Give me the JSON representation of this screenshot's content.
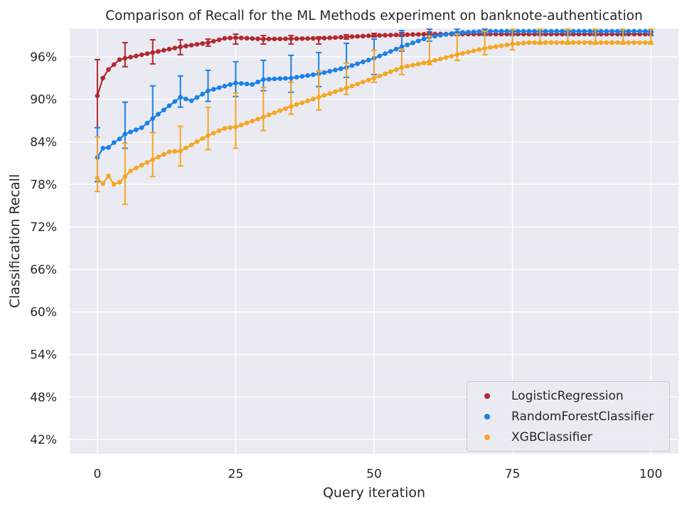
{
  "chart_data": {
    "type": "line",
    "title": "Comparison of Recall for the ML Methods experiment on banknote-authentication",
    "xlabel": "Query iteration",
    "ylabel": "Classification Recall",
    "xlim": [
      -5,
      105
    ],
    "ylim": [
      0.4,
      1.0
    ],
    "x_ticks": [
      0,
      25,
      50,
      75,
      100
    ],
    "y_ticks": [
      0.42,
      0.48,
      0.54,
      0.6,
      0.66,
      0.72,
      0.78,
      0.84,
      0.9,
      0.96
    ],
    "y_tick_labels": [
      "42%",
      "48%",
      "54%",
      "60%",
      "66%",
      "72%",
      "78%",
      "84%",
      "90%",
      "96%"
    ],
    "grid": true,
    "legend_position": "lower right",
    "series": [
      {
        "name": "LogisticRegression",
        "color": "#b2292e",
        "anchors": [
          [
            0,
            0.905
          ],
          [
            1,
            0.93
          ],
          [
            2,
            0.942
          ],
          [
            3,
            0.949
          ],
          [
            4,
            0.956
          ],
          [
            5,
            0.958
          ],
          [
            10,
            0.966
          ],
          [
            15,
            0.974
          ],
          [
            20,
            0.98
          ],
          [
            23,
            0.986
          ],
          [
            25,
            0.987
          ],
          [
            30,
            0.985
          ],
          [
            40,
            0.986
          ],
          [
            45,
            0.988
          ],
          [
            50,
            0.99
          ],
          [
            55,
            0.991
          ],
          [
            60,
            0.992
          ],
          [
            100,
            0.992
          ]
        ],
        "error_bars": [
          [
            0,
            0.86,
            0.956
          ],
          [
            5,
            0.946,
            0.98
          ],
          [
            10,
            0.95,
            0.984
          ],
          [
            15,
            0.963,
            0.984
          ],
          [
            20,
            0.975,
            0.985
          ],
          [
            25,
            0.978,
            0.992
          ],
          [
            30,
            0.978,
            0.99
          ],
          [
            35,
            0.978,
            0.99
          ],
          [
            40,
            0.978,
            0.988
          ],
          [
            45,
            0.985,
            0.991
          ],
          [
            50,
            0.988,
            0.993
          ],
          [
            55,
            0.989,
            0.994
          ],
          [
            60,
            0.99,
            0.995
          ],
          [
            65,
            0.99,
            0.995
          ],
          [
            70,
            0.99,
            0.995
          ],
          [
            75,
            0.99,
            0.995
          ],
          [
            80,
            0.99,
            0.995
          ],
          [
            85,
            0.99,
            0.995
          ],
          [
            90,
            0.99,
            0.995
          ],
          [
            95,
            0.99,
            0.995
          ],
          [
            100,
            0.99,
            0.995
          ]
        ]
      },
      {
        "name": "RandomForestClassifier",
        "color": "#1a80e8",
        "anchors": [
          [
            0,
            0.818
          ],
          [
            1,
            0.831
          ],
          [
            2,
            0.832
          ],
          [
            3,
            0.839
          ],
          [
            4,
            0.844
          ],
          [
            5,
            0.851
          ],
          [
            8,
            0.86
          ],
          [
            10,
            0.873
          ],
          [
            15,
            0.903
          ],
          [
            17,
            0.898
          ],
          [
            20,
            0.912
          ],
          [
            25,
            0.923
          ],
          [
            28,
            0.921
          ],
          [
            30,
            0.928
          ],
          [
            35,
            0.93
          ],
          [
            40,
            0.936
          ],
          [
            45,
            0.945
          ],
          [
            50,
            0.958
          ],
          [
            55,
            0.974
          ],
          [
            60,
            0.988
          ],
          [
            65,
            0.994
          ],
          [
            70,
            0.996
          ],
          [
            100,
            0.996
          ]
        ],
        "error_bars": [
          [
            0,
            0.784,
            0.86
          ],
          [
            5,
            0.831,
            0.896
          ],
          [
            10,
            0.853,
            0.919
          ],
          [
            15,
            0.889,
            0.933
          ],
          [
            20,
            0.897,
            0.941
          ],
          [
            25,
            0.904,
            0.953
          ],
          [
            30,
            0.912,
            0.955
          ],
          [
            35,
            0.91,
            0.962
          ],
          [
            40,
            0.918,
            0.966
          ],
          [
            45,
            0.931,
            0.979
          ],
          [
            50,
            0.935,
            0.985
          ],
          [
            55,
            0.968,
            0.997
          ],
          [
            60,
            0.982,
            0.999
          ],
          [
            65,
            0.99,
            0.999
          ],
          [
            70,
            0.99,
            0.999
          ],
          [
            75,
            0.99,
            0.999
          ],
          [
            80,
            0.99,
            0.999
          ],
          [
            85,
            0.99,
            0.999
          ],
          [
            90,
            0.99,
            0.999
          ],
          [
            95,
            0.99,
            0.999
          ],
          [
            100,
            0.99,
            0.999
          ]
        ]
      },
      {
        "name": "XGBClassifier",
        "color": "#f5a623",
        "anchors": [
          [
            0,
            0.789
          ],
          [
            1,
            0.781
          ],
          [
            2,
            0.792
          ],
          [
            3,
            0.78
          ],
          [
            4,
            0.783
          ],
          [
            5,
            0.791
          ],
          [
            6,
            0.799
          ],
          [
            10,
            0.815
          ],
          [
            13,
            0.826
          ],
          [
            15,
            0.827
          ],
          [
            20,
            0.849
          ],
          [
            23,
            0.859
          ],
          [
            25,
            0.861
          ],
          [
            30,
            0.875
          ],
          [
            35,
            0.89
          ],
          [
            40,
            0.903
          ],
          [
            45,
            0.916
          ],
          [
            50,
            0.93
          ],
          [
            55,
            0.945
          ],
          [
            60,
            0.953
          ],
          [
            65,
            0.963
          ],
          [
            70,
            0.972
          ],
          [
            75,
            0.978
          ],
          [
            78,
            0.98
          ],
          [
            100,
            0.98
          ]
        ],
        "error_bars": [
          [
            0,
            0.77,
            0.847
          ],
          [
            5,
            0.752,
            0.838
          ],
          [
            10,
            0.791,
            0.853
          ],
          [
            15,
            0.806,
            0.862
          ],
          [
            20,
            0.829,
            0.889
          ],
          [
            25,
            0.831,
            0.909
          ],
          [
            30,
            0.856,
            0.917
          ],
          [
            35,
            0.879,
            0.924
          ],
          [
            40,
            0.885,
            0.94
          ],
          [
            45,
            0.907,
            0.951
          ],
          [
            50,
            0.924,
            0.969
          ],
          [
            55,
            0.935,
            0.971
          ],
          [
            60,
            0.949,
            0.989
          ],
          [
            65,
            0.955,
            0.992
          ],
          [
            70,
            0.963,
            0.996
          ],
          [
            75,
            0.97,
            0.999
          ],
          [
            80,
            0.978,
            0.999
          ],
          [
            85,
            0.978,
            0.999
          ],
          [
            90,
            0.978,
            0.999
          ],
          [
            95,
            0.978,
            0.999
          ],
          [
            100,
            0.978,
            0.999
          ]
        ]
      }
    ]
  }
}
